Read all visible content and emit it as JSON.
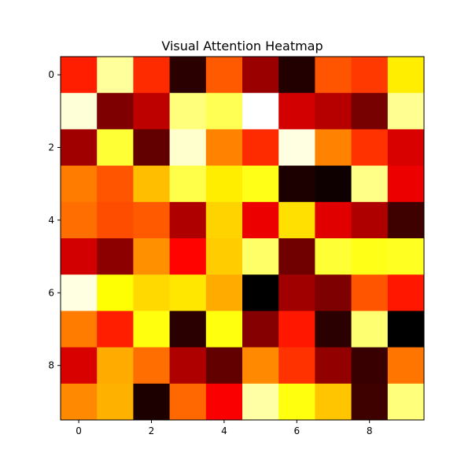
{
  "chart_data": {
    "type": "heatmap",
    "title": "Visual Attention Heatmap",
    "xlabel": "",
    "ylabel": "",
    "colormap": "hot",
    "grid": false,
    "vmin": 0,
    "vmax": 1,
    "x_ticks": [
      0,
      2,
      4,
      6,
      8
    ],
    "y_ticks": [
      0,
      2,
      4,
      6,
      8
    ],
    "x_tick_labels": [
      "0",
      "2",
      "4",
      "6",
      "8"
    ],
    "y_tick_labels": [
      "0",
      "2",
      "4",
      "6",
      "8"
    ],
    "values": [
      [
        0.41,
        0.9,
        0.43,
        0.06,
        0.5,
        0.22,
        0.05,
        0.49,
        0.45,
        0.72
      ],
      [
        0.96,
        0.18,
        0.27,
        0.87,
        0.83,
        1.0,
        0.3,
        0.26,
        0.17,
        0.89
      ],
      [
        0.23,
        0.8,
        0.14,
        0.95,
        0.56,
        0.43,
        0.97,
        0.56,
        0.44,
        0.31
      ],
      [
        0.55,
        0.49,
        0.65,
        0.82,
        0.72,
        0.77,
        0.04,
        0.02,
        0.88,
        0.34
      ],
      [
        0.53,
        0.48,
        0.5,
        0.25,
        0.68,
        0.34,
        0.7,
        0.32,
        0.25,
        0.09
      ],
      [
        0.3,
        0.2,
        0.58,
        0.37,
        0.67,
        0.85,
        0.16,
        0.8,
        0.77,
        0.78
      ],
      [
        0.97,
        0.75,
        0.69,
        0.71,
        0.62,
        0.0,
        0.23,
        0.18,
        0.49,
        0.4
      ],
      [
        0.55,
        0.41,
        0.76,
        0.06,
        0.76,
        0.19,
        0.4,
        0.06,
        0.86,
        0.0
      ],
      [
        0.31,
        0.62,
        0.53,
        0.25,
        0.14,
        0.57,
        0.44,
        0.21,
        0.08,
        0.54
      ],
      [
        0.57,
        0.63,
        0.04,
        0.52,
        0.36,
        0.91,
        0.76,
        0.66,
        0.09,
        0.87
      ]
    ]
  }
}
